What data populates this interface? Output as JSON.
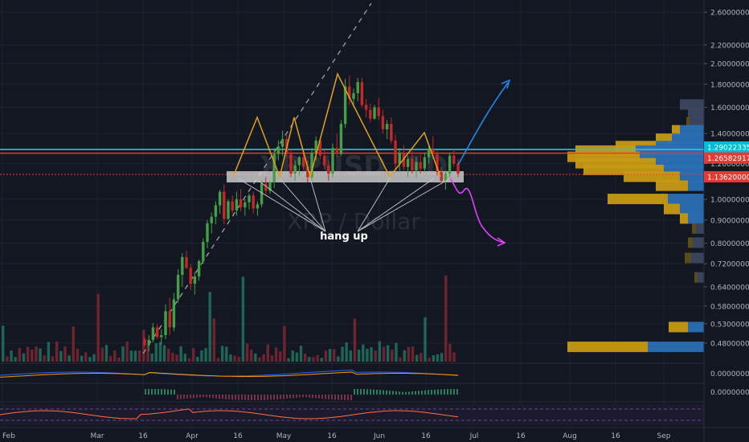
{
  "chart_data": {
    "type": "candlestick",
    "watermark": {
      "symbol": "XRPUSD, 1D",
      "subtitle": "XRP / Dollar"
    },
    "annotation": "hang up",
    "price_axis": {
      "scale": "log",
      "range": [
        0.455,
        2.7
      ],
      "ticks": [
        "2.60000000",
        "2.20000000",
        "2.00000000",
        "1.80000000",
        "1.60000000",
        "1.40000000",
        "1.20000000",
        "1.00000000",
        "0.90000000",
        "0.80000000",
        "0.72000000",
        "0.64000000",
        "0.58000000",
        "0.53000000",
        "0.48000000"
      ]
    },
    "price_labels": [
      {
        "text": "1.29022335",
        "color": "#00bcd4"
      },
      {
        "text": "1.26582917",
        "color": "#e53935"
      },
      {
        "text": "1.13620000",
        "color": "#e53935"
      }
    ],
    "time_axis": {
      "ticks": [
        "Feb",
        "Mar",
        "16",
        "Apr",
        "16",
        "May",
        "16",
        "Jun",
        "16",
        "Jul",
        "16",
        "Aug",
        "16",
        "Sep"
      ]
    },
    "indicator_labels": [
      "0.00000000",
      "0.00000000"
    ],
    "neckline": 1.11,
    "levels": {
      "cyan": 1.29022335,
      "red": 1.26582917,
      "dotted": 1.1362
    },
    "candles": [
      [
        0.49,
        0.495,
        0.472,
        0.475
      ],
      [
        0.475,
        0.5,
        0.46,
        0.488
      ],
      [
        0.488,
        0.532,
        0.482,
        0.52
      ],
      [
        0.52,
        0.528,
        0.49,
        0.495
      ],
      [
        0.495,
        0.515,
        0.476,
        0.5
      ],
      [
        0.5,
        0.585,
        0.49,
        0.565
      ],
      [
        0.565,
        0.605,
        0.5,
        0.52
      ],
      [
        0.52,
        0.62,
        0.51,
        0.6
      ],
      [
        0.6,
        0.7,
        0.59,
        0.68
      ],
      [
        0.68,
        0.76,
        0.64,
        0.745
      ],
      [
        0.745,
        0.77,
        0.7,
        0.705
      ],
      [
        0.705,
        0.72,
        0.63,
        0.65
      ],
      [
        0.65,
        0.69,
        0.615,
        0.675
      ],
      [
        0.675,
        0.735,
        0.66,
        0.73
      ],
      [
        0.73,
        0.82,
        0.72,
        0.805
      ],
      [
        0.805,
        0.9,
        0.78,
        0.885
      ],
      [
        0.885,
        0.935,
        0.84,
        0.915
      ],
      [
        0.915,
        0.99,
        0.88,
        0.97
      ],
      [
        0.97,
        1.05,
        0.93,
        1.04
      ],
      [
        1.04,
        1.08,
        0.88,
        0.905
      ],
      [
        0.905,
        1.0,
        0.9,
        0.99
      ],
      [
        0.99,
        1.02,
        0.93,
        0.945
      ],
      [
        0.945,
        1.04,
        0.92,
        1.0
      ],
      [
        1.0,
        1.055,
        0.94,
        0.96
      ],
      [
        0.96,
        1.0,
        0.92,
        0.985
      ],
      [
        0.985,
        1.03,
        0.95,
        1.02
      ],
      [
        1.02,
        1.04,
        0.93,
        0.955
      ],
      [
        0.955,
        0.99,
        0.92,
        0.975
      ],
      [
        0.975,
        1.1,
        0.96,
        1.085
      ],
      [
        1.085,
        1.12,
        1.02,
        1.045
      ],
      [
        1.045,
        1.1,
        1.03,
        1.09
      ],
      [
        1.09,
        1.3,
        1.06,
        1.26
      ],
      [
        1.26,
        1.35,
        1.22,
        1.31
      ],
      [
        1.31,
        1.42,
        1.25,
        1.36
      ],
      [
        1.36,
        1.39,
        1.24,
        1.26
      ],
      [
        1.26,
        1.29,
        1.12,
        1.14
      ],
      [
        1.14,
        1.22,
        1.1,
        1.19
      ],
      [
        1.19,
        1.25,
        1.13,
        1.24
      ],
      [
        1.24,
        1.29,
        1.16,
        1.18
      ],
      [
        1.18,
        1.22,
        1.09,
        1.12
      ],
      [
        1.12,
        1.3,
        1.1,
        1.27
      ],
      [
        1.27,
        1.38,
        1.22,
        1.35
      ],
      [
        1.35,
        1.37,
        1.23,
        1.25
      ],
      [
        1.25,
        1.29,
        1.17,
        1.19
      ],
      [
        1.19,
        1.22,
        1.1,
        1.14
      ],
      [
        1.14,
        1.33,
        1.12,
        1.3
      ],
      [
        1.3,
        1.4,
        1.24,
        1.26
      ],
      [
        1.26,
        1.5,
        1.25,
        1.47
      ],
      [
        1.47,
        1.85,
        1.44,
        1.78
      ],
      [
        1.78,
        1.88,
        1.62,
        1.67
      ],
      [
        1.67,
        1.76,
        1.6,
        1.72
      ],
      [
        1.72,
        1.86,
        1.65,
        1.82
      ],
      [
        1.82,
        1.86,
        1.6,
        1.62
      ],
      [
        1.62,
        1.67,
        1.52,
        1.58
      ],
      [
        1.58,
        1.63,
        1.48,
        1.51
      ],
      [
        1.51,
        1.62,
        1.5,
        1.6
      ],
      [
        1.6,
        1.68,
        1.5,
        1.53
      ],
      [
        1.53,
        1.58,
        1.4,
        1.43
      ],
      [
        1.43,
        1.5,
        1.36,
        1.47
      ],
      [
        1.47,
        1.52,
        1.33,
        1.35
      ],
      [
        1.35,
        1.39,
        1.17,
        1.2
      ],
      [
        1.2,
        1.3,
        1.15,
        1.27
      ],
      [
        1.27,
        1.32,
        1.16,
        1.18
      ],
      [
        1.18,
        1.25,
        1.12,
        1.23
      ],
      [
        1.23,
        1.28,
        1.14,
        1.16
      ],
      [
        1.16,
        1.24,
        1.12,
        1.21
      ],
      [
        1.21,
        1.26,
        1.14,
        1.17
      ],
      [
        1.17,
        1.27,
        1.15,
        1.24
      ],
      [
        1.24,
        1.32,
        1.2,
        1.29
      ],
      [
        1.29,
        1.38,
        1.23,
        1.26
      ],
      [
        1.26,
        1.28,
        1.13,
        1.15
      ],
      [
        1.15,
        1.18,
        1.08,
        1.1
      ],
      [
        1.1,
        1.16,
        1.05,
        1.14
      ],
      [
        1.14,
        1.27,
        1.12,
        1.25
      ],
      [
        1.25,
        1.29,
        1.18,
        1.2
      ],
      [
        1.2,
        1.23,
        1.12,
        1.14
      ]
    ]
  }
}
